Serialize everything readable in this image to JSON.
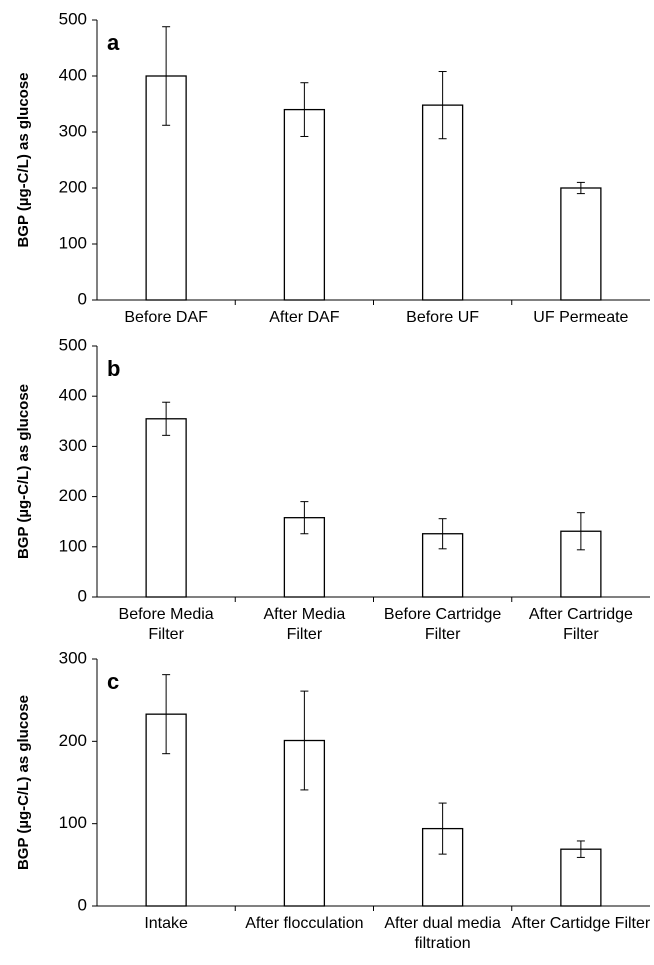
{
  "chart_data": [
    {
      "type": "bar",
      "label": "a",
      "ylabel": "BGP (µg-C/L) as glucose",
      "categories": [
        "Before DAF",
        "After DAF",
        "Before UF",
        "UF Permeate"
      ],
      "values": [
        400,
        340,
        348,
        200
      ],
      "errors": [
        88,
        48,
        60,
        10
      ],
      "color": "#ffffff",
      "ylim": [
        0,
        500
      ],
      "yticks": [
        0,
        100,
        200,
        300,
        400,
        500
      ]
    },
    {
      "type": "bar",
      "label": "b",
      "ylabel": "BGP (µg-C/L) as glucose",
      "categories": [
        "Before Media Filter",
        "After Media Filter",
        "Before Cartridge Filter",
        "After Cartridge Filter"
      ],
      "values": [
        355,
        158,
        126,
        131
      ],
      "errors": [
        33,
        32,
        30,
        37
      ],
      "color": "#ffffff",
      "ylim": [
        0,
        500
      ],
      "yticks": [
        0,
        100,
        200,
        300,
        400,
        500
      ]
    },
    {
      "type": "bar",
      "label": "c",
      "ylabel": "BGP (µg-C/L) as glucose",
      "categories": [
        "Intake",
        "After flocculation",
        "After dual media filtration",
        "After Cartidge Filter"
      ],
      "values": [
        233,
        201,
        94,
        69
      ],
      "errors": [
        48,
        60,
        31,
        10
      ],
      "color": "#ffffff",
      "ylim": [
        0,
        300
      ],
      "yticks": [
        0,
        100,
        200,
        300
      ]
    }
  ]
}
